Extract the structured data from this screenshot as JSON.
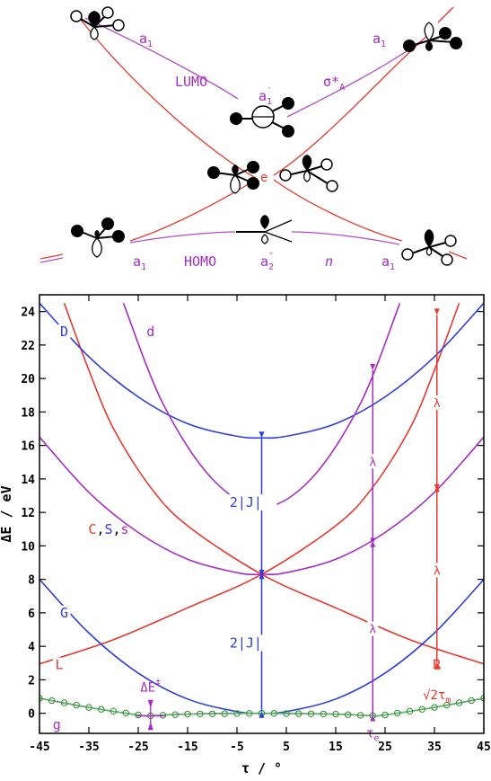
{
  "colors": {
    "red": "#e8382e",
    "blue": "#2a3de0",
    "purple": "#a52cc4",
    "green": "#3fcf3f",
    "black": "#000000"
  },
  "orbital_diagram": {
    "labels": {
      "a1_top_left": "a",
      "a1_top_left_sub": "1",
      "a1_top_right": "a",
      "a1_top_right_sub": "1",
      "lumo": "LUMO",
      "sigma_star": "σ*",
      "sigma_star_sub": "A",
      "a1_prime": "a",
      "a1_prime_sub": "1",
      "a1_prime_sup": "′",
      "e": "e",
      "a1_bottom_left": "a",
      "a1_bottom_left_sub": "1",
      "homo": "HOMO",
      "a2_dprime": "a",
      "a2_dprime_sub": "2",
      "a2_dprime_sup": "″",
      "n": "n",
      "a1_bottom_right": "a",
      "a1_bottom_right_sub": "1"
    },
    "icons": [
      "pyramidal-molecule-icon",
      "planar-molecule-icon",
      "jahn-teller-molecule-icon"
    ]
  },
  "chart_data": {
    "type": "line",
    "xlabel": "τ / °",
    "ylabel": "ΔE / eV",
    "xlim": [
      -45,
      45
    ],
    "ylim": [
      -1.2,
      25
    ],
    "xticks": [
      -45,
      -35,
      -25,
      -15,
      -5,
      5,
      15,
      25,
      35,
      45
    ],
    "yticks": [
      0,
      2,
      4,
      6,
      8,
      10,
      12,
      14,
      16,
      18,
      20,
      22,
      24
    ],
    "series": [
      {
        "name": "L",
        "color": "red",
        "points": [
          [
            -45,
            2.95
          ],
          [
            -30,
            4.4
          ],
          [
            -15,
            6.3
          ],
          [
            0,
            8.3
          ],
          [
            15,
            11.2
          ],
          [
            22.5,
            13.5
          ],
          [
            30,
            17.0
          ],
          [
            35,
            20.5
          ],
          [
            40,
            24.5
          ]
        ]
      },
      {
        "name": "R",
        "color": "red",
        "points": [
          [
            -40,
            24.5
          ],
          [
            -35,
            20.5
          ],
          [
            -30,
            17.0
          ],
          [
            -22.5,
            13.5
          ],
          [
            -15,
            11.2
          ],
          [
            0,
            8.3
          ],
          [
            15,
            6.3
          ],
          [
            30,
            4.4
          ],
          [
            45,
            2.95
          ]
        ]
      },
      {
        "name": "G",
        "color": "blue",
        "points": [
          [
            -45,
            8.0
          ],
          [
            -35,
            4.8
          ],
          [
            -25,
            2.4
          ],
          [
            -15,
            0.85
          ],
          [
            -5,
            0.1
          ],
          [
            0,
            0.0
          ],
          [
            5,
            0.1
          ],
          [
            15,
            0.85
          ],
          [
            25,
            2.4
          ],
          [
            35,
            4.8
          ],
          [
            45,
            8.0
          ]
        ]
      },
      {
        "name": "D",
        "color": "blue",
        "points": [
          [
            -45,
            24.5
          ],
          [
            -35,
            21.3
          ],
          [
            -25,
            18.9
          ],
          [
            -15,
            17.3
          ],
          [
            -5,
            16.55
          ],
          [
            0,
            16.45
          ],
          [
            5,
            16.55
          ],
          [
            15,
            17.3
          ],
          [
            25,
            18.9
          ],
          [
            35,
            21.3
          ],
          [
            45,
            24.5
          ]
        ]
      },
      {
        "name": "C, S, s",
        "color": "purple",
        "points": [
          [
            -45,
            16.5
          ],
          [
            -35,
            13.2
          ],
          [
            -25,
            10.8
          ],
          [
            -15,
            9.2
          ],
          [
            -5,
            8.4
          ],
          [
            0,
            8.3
          ],
          [
            5,
            8.4
          ],
          [
            15,
            9.2
          ],
          [
            25,
            10.8
          ],
          [
            35,
            13.2
          ],
          [
            45,
            16.5
          ]
        ]
      },
      {
        "name": "d",
        "color": "purple",
        "points": [
          [
            -28,
            24.5
          ],
          [
            -20,
            18.5
          ],
          [
            -10,
            14.0
          ],
          [
            0,
            12.3
          ],
          [
            10,
            14.0
          ],
          [
            20,
            18.5
          ],
          [
            28,
            24.5
          ]
        ]
      },
      {
        "name": "g",
        "color": "purple",
        "points": [
          [
            -45,
            0.9
          ],
          [
            -35,
            0.35
          ],
          [
            -25,
            -0.1
          ],
          [
            -22.5,
            -0.15
          ],
          [
            -15,
            -0.05
          ],
          [
            0,
            0.0
          ],
          [
            15,
            -0.05
          ],
          [
            22.5,
            -0.15
          ],
          [
            25,
            -0.1
          ],
          [
            35,
            0.35
          ],
          [
            45,
            0.9
          ]
        ]
      }
    ],
    "markers": {
      "color": "green",
      "x": [
        -45,
        -42.5,
        -40,
        -37.5,
        -35,
        -32.5,
        -30,
        -27.5,
        -25,
        -22.5,
        -20,
        -17.5,
        -15,
        -12.5,
        -10,
        -7.5,
        -5,
        -2.5,
        0,
        2.5,
        5,
        7.5,
        10,
        12.5,
        15,
        17.5,
        20,
        22.5,
        25,
        27.5,
        30,
        32.5,
        35,
        37.5,
        40,
        42.5,
        45
      ]
    },
    "curve_labels": [
      {
        "text": "D",
        "color": "blue",
        "x": -40,
        "y": 22.8
      },
      {
        "text": "d",
        "color": "purple",
        "x": -22.5,
        "y": 22.8
      },
      {
        "text": "G",
        "color": "blue",
        "x": -40,
        "y": 6.0
      },
      {
        "text": "L",
        "color": "red",
        "x": -41,
        "y": 2.9
      },
      {
        "text": "R",
        "color": "red",
        "x": 35.5,
        "y": 2.9
      },
      {
        "text": "g",
        "color": "purple",
        "x": -41.5,
        "y": -0.7
      }
    ],
    "annotations": {
      "c_label": "C",
      "s_label": "S",
      "s2_label": "s",
      "comma": ",",
      "two_j_upper": "2|J|",
      "two_j_lower": "2|J|",
      "lambda_mid": "λ",
      "lambda_low": "λ",
      "lambda_right_top": "λ",
      "lambda_right_low": "λ",
      "tau_e": "τ",
      "tau_e_sub": "e",
      "sqrt2tau": "√2τ",
      "sqrt2tau_sub": "m",
      "delta_e_barrier": "ΔE",
      "delta_e_sup": "‡"
    }
  }
}
